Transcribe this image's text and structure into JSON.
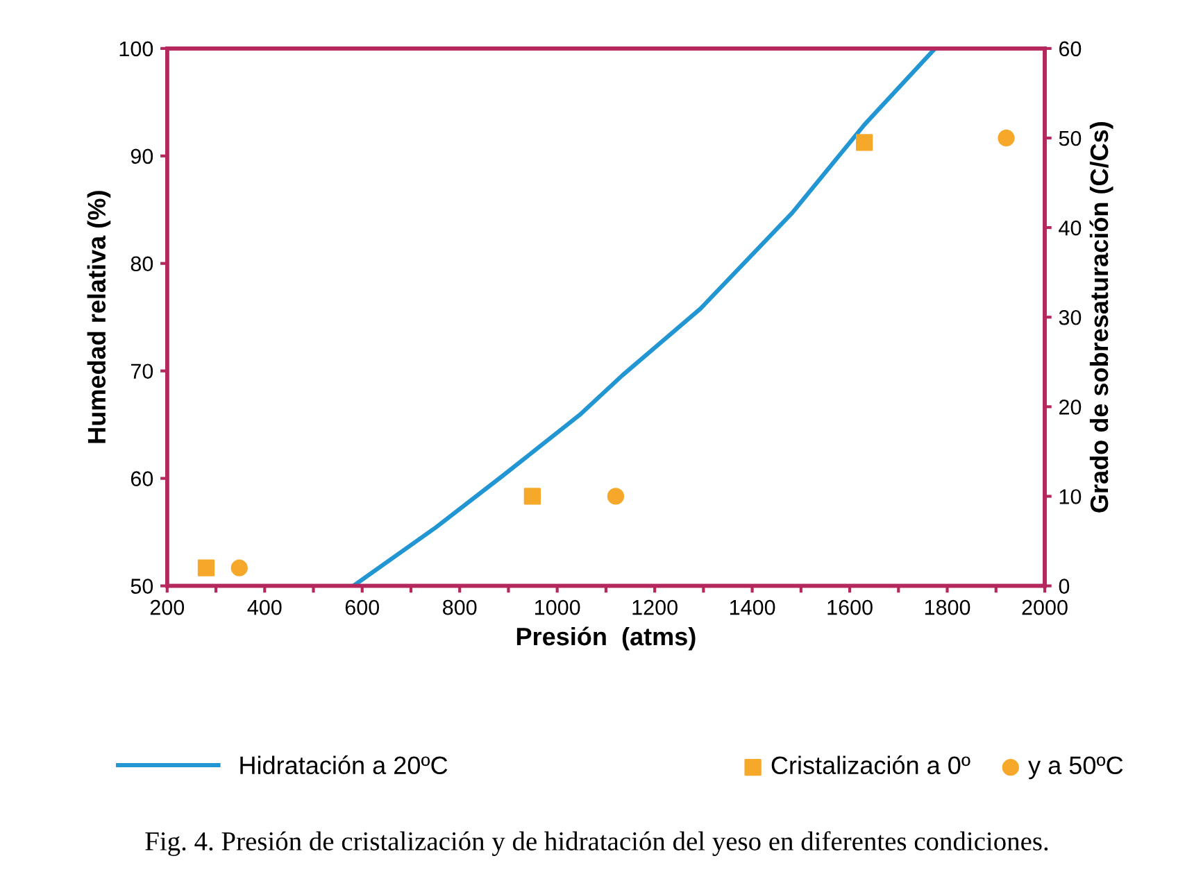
{
  "chart_data": {
    "type": "line",
    "xlabel": "Presión  (atms)",
    "ylabel": "Humedad relativa (%)",
    "y2label": "Grado de sobresaturación (C/Cs)",
    "xlim": [
      200,
      2000
    ],
    "ylim": [
      50,
      100
    ],
    "y2lim": [
      0,
      60
    ],
    "xticks": [
      200,
      {
        "value": 300,
        "label": null
      },
      400,
      {
        "value": 500,
        "label": null
      },
      600,
      {
        "value": 700,
        "label": null
      },
      800,
      {
        "value": 900,
        "label": null
      },
      1000,
      {
        "value": 1100,
        "label": null
      },
      1200,
      {
        "value": 1300,
        "label": null
      },
      1400,
      {
        "value": 1500,
        "label": null
      },
      1600,
      {
        "value": 1700,
        "label": null
      },
      1800,
      {
        "value": 1900,
        "label": null
      },
      2000
    ],
    "yticks": [
      50,
      60,
      70,
      80,
      90,
      100
    ],
    "y2ticks": [
      0,
      10,
      20,
      30,
      40,
      50,
      60
    ],
    "grid": false,
    "legend": "bottom",
    "series": [
      {
        "name": "Hidratación a 20ºC",
        "type": "line",
        "color": "#2196d3",
        "marker": "none",
        "line_style": "solid",
        "x": [
          582,
          750,
          887,
          1046,
          1134,
          1294,
          1482,
          1630,
          1775
        ],
        "values": [
          50,
          55.4,
          60.2,
          65.9,
          69.6,
          75.8,
          84.7,
          92.9,
          100
        ]
      },
      {
        "name": "Cristalización a 0º",
        "type": "scatter",
        "axis": "y2",
        "color": "#f5a82a",
        "marker": "square",
        "x": [
          280,
          949,
          1630
        ],
        "values": [
          2,
          10,
          49.5
        ]
      },
      {
        "name": "y a 50ºC",
        "type": "scatter",
        "axis": "y2",
        "color": "#f5a82a",
        "marker": "circle",
        "x": [
          348,
          1120,
          1921
        ],
        "values": [
          2,
          10,
          50
        ]
      }
    ],
    "annotations": [
      "Fig. 4. Presión de cristalización y de hidratación del yeso en diferentes condiciones."
    ]
  }
}
